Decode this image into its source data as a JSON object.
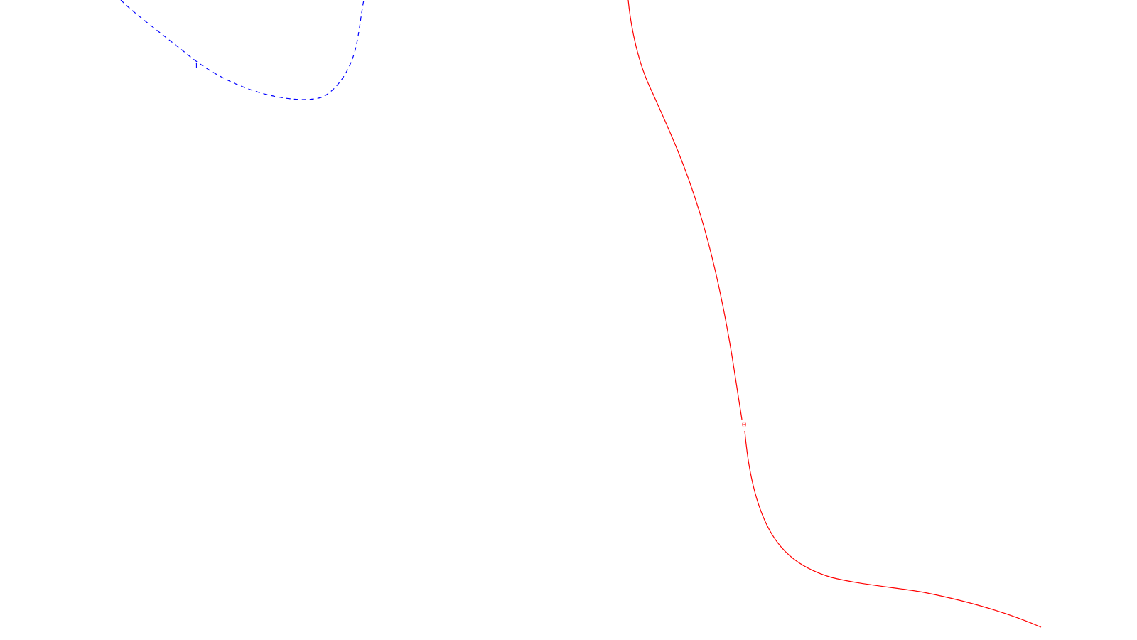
{
  "contours": [
    {
      "id": "contour-1",
      "label": "1",
      "color": "#0000ff",
      "style": "dashed"
    },
    {
      "id": "contour-0",
      "label": "0",
      "color": "#ff0000",
      "style": "solid"
    }
  ]
}
